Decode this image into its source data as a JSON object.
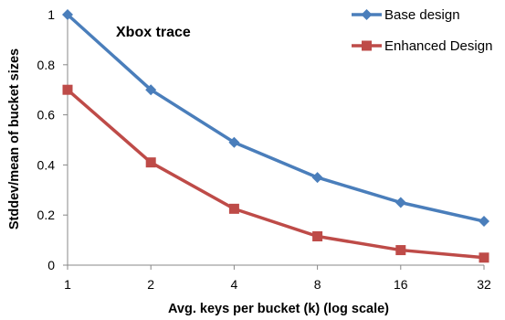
{
  "chart_data": {
    "type": "line",
    "annotation": "Xbox trace",
    "xlabel": "Avg. keys per bucket (k) (log scale)",
    "ylabel": "Stddev/mean of bucket sizes",
    "x_scale": "log2",
    "categories": [
      "1",
      "2",
      "4",
      "8",
      "16",
      "32"
    ],
    "ylim": [
      0,
      1
    ],
    "yticks": [
      "0",
      "0.2",
      "0.4",
      "0.6",
      "0.8",
      "1"
    ],
    "grid": false,
    "legend_position": "top-right",
    "series": [
      {
        "name": "Base design",
        "color": "#4A7EBB",
        "marker": "diamond",
        "values": [
          1.0,
          0.7,
          0.49,
          0.35,
          0.25,
          0.175
        ]
      },
      {
        "name": "Enhanced Design",
        "color": "#BE4B48",
        "marker": "square",
        "values": [
          0.7,
          0.41,
          0.225,
          0.115,
          0.06,
          0.03
        ]
      }
    ]
  }
}
